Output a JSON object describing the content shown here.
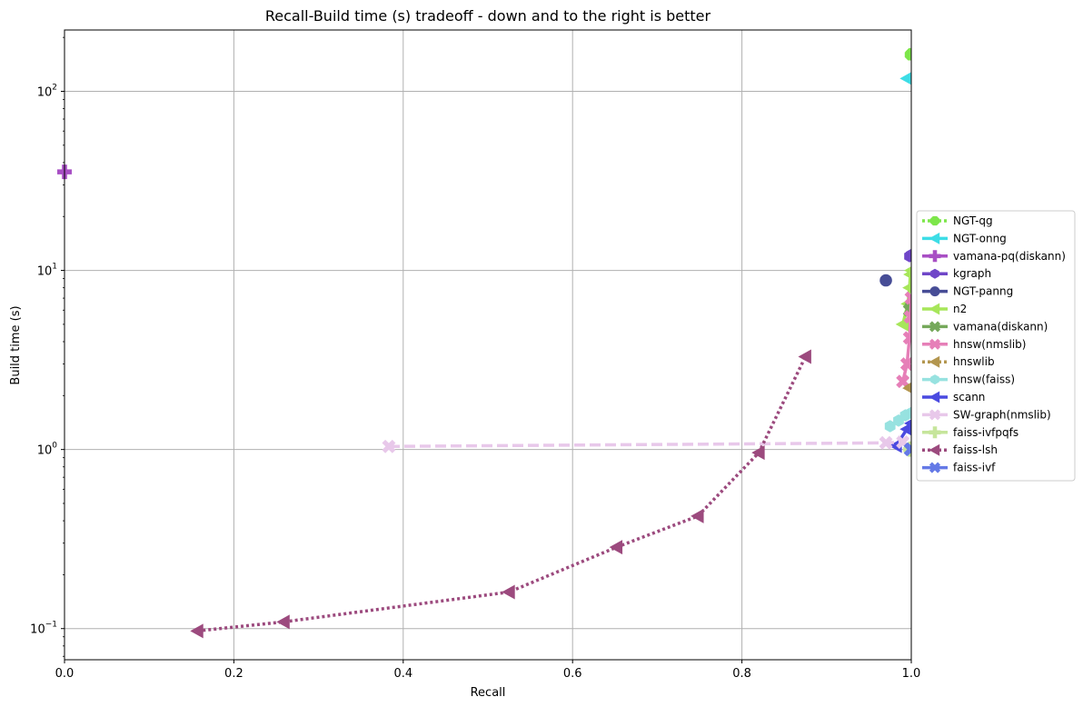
{
  "chart_data": {
    "type": "line",
    "title": "Recall-Build time (s) tradeoff - down and to the right is better",
    "xlabel": "Recall",
    "ylabel": "Build time (s)",
    "xlim": [
      0.0,
      1.0
    ],
    "ylim": [
      0.067,
      220
    ],
    "yscale": "log",
    "grid": true,
    "legend_position": "right",
    "x_ticks": [
      "0.0",
      "0.2",
      "0.4",
      "0.6",
      "0.8",
      "1.0"
    ],
    "y_ticks": [
      {
        "value": 0.1,
        "base": "10",
        "exp": "−1"
      },
      {
        "value": 1,
        "base": "10",
        "exp": "0"
      },
      {
        "value": 10,
        "base": "10",
        "exp": "1"
      },
      {
        "value": 100,
        "base": "10",
        "exp": "2"
      }
    ],
    "series": [
      {
        "name": "NGT-qg",
        "color": "#7de64a",
        "dash": "dotted",
        "marker": "octagon",
        "x": [
          0.999,
          1.0
        ],
        "y": [
          160,
          162
        ]
      },
      {
        "name": "NGT-onng",
        "color": "#3ddde6",
        "dash": "solid",
        "marker": "triangle-left",
        "x": [
          0.995,
          0.999
        ],
        "y": [
          118,
          120
        ]
      },
      {
        "name": "vamana-pq(diskann)",
        "color": "#a84fc4",
        "dash": "solid",
        "marker": "plus",
        "x": [
          0.0
        ],
        "y": [
          35.5
        ]
      },
      {
        "name": "kgraph",
        "color": "#6f46c8",
        "dash": "solid",
        "marker": "hexagon",
        "x": [
          0.998,
          1.0
        ],
        "y": [
          12.0,
          12.2
        ]
      },
      {
        "name": "NGT-panng",
        "color": "#474d96",
        "dash": "solid",
        "marker": "circle",
        "x": [
          0.97
        ],
        "y": [
          8.8
        ]
      },
      {
        "name": "n2",
        "color": "#a7e65a",
        "dash": "solid",
        "marker": "triangle-left",
        "x": [
          0.99,
          0.996,
          0.998,
          0.999,
          1.0
        ],
        "y": [
          5.0,
          6.5,
          8.0,
          9.5,
          10.0
        ]
      },
      {
        "name": "vamana(diskann)",
        "color": "#75a85a",
        "dash": "solid",
        "marker": "x",
        "x": [
          0.998,
          1.0
        ],
        "y": [
          6.0,
          6.2
        ]
      },
      {
        "name": "hnsw(nmslib)",
        "color": "#e67fb8",
        "dash": "solid",
        "marker": "x",
        "x": [
          0.99,
          0.995,
          0.998,
          0.999,
          1.0
        ],
        "y": [
          2.4,
          3.0,
          4.2,
          5.5,
          7.0
        ]
      },
      {
        "name": "hnswlib",
        "color": "#b3964f",
        "dash": "dotted",
        "marker": "triangle-left",
        "x": [
          0.998,
          1.0
        ],
        "y": [
          2.2,
          2.25
        ]
      },
      {
        "name": "hnsw(faiss)",
        "color": "#97e2e0",
        "dash": "dashed",
        "marker": "hexagon",
        "x": [
          0.975,
          0.985,
          0.993,
          1.0
        ],
        "y": [
          1.35,
          1.45,
          1.55,
          1.6
        ]
      },
      {
        "name": "scann",
        "color": "#4a4ae0",
        "dash": "solid",
        "marker": "triangle-left",
        "x": [
          0.982,
          0.995,
          1.0
        ],
        "y": [
          1.05,
          1.3,
          1.4
        ]
      },
      {
        "name": "SW-graph(nmslib)",
        "color": "#e8c8ea",
        "dash": "dashed",
        "marker": "x",
        "x": [
          0.383,
          0.97,
          0.99
        ],
        "y": [
          1.04,
          1.09,
          1.1
        ]
      },
      {
        "name": "faiss-ivfpqfs",
        "color": "#c6e59b",
        "dash": "solid",
        "marker": "plus",
        "x": [
          0.999,
          1.0
        ],
        "y": [
          1.0,
          1.01
        ]
      },
      {
        "name": "faiss-lsh",
        "color": "#9c4a7e",
        "dash": "dotted",
        "marker": "triangle-left",
        "x": [
          0.157,
          0.259,
          0.525,
          0.652,
          0.748,
          0.82,
          0.875
        ],
        "y": [
          0.097,
          0.109,
          0.16,
          0.285,
          0.425,
          0.96,
          3.3
        ]
      },
      {
        "name": "faiss-ivf",
        "color": "#6479e6",
        "dash": "solid",
        "marker": "x",
        "x": [
          0.999,
          1.0
        ],
        "y": [
          1.0,
          1.005
        ]
      }
    ]
  }
}
